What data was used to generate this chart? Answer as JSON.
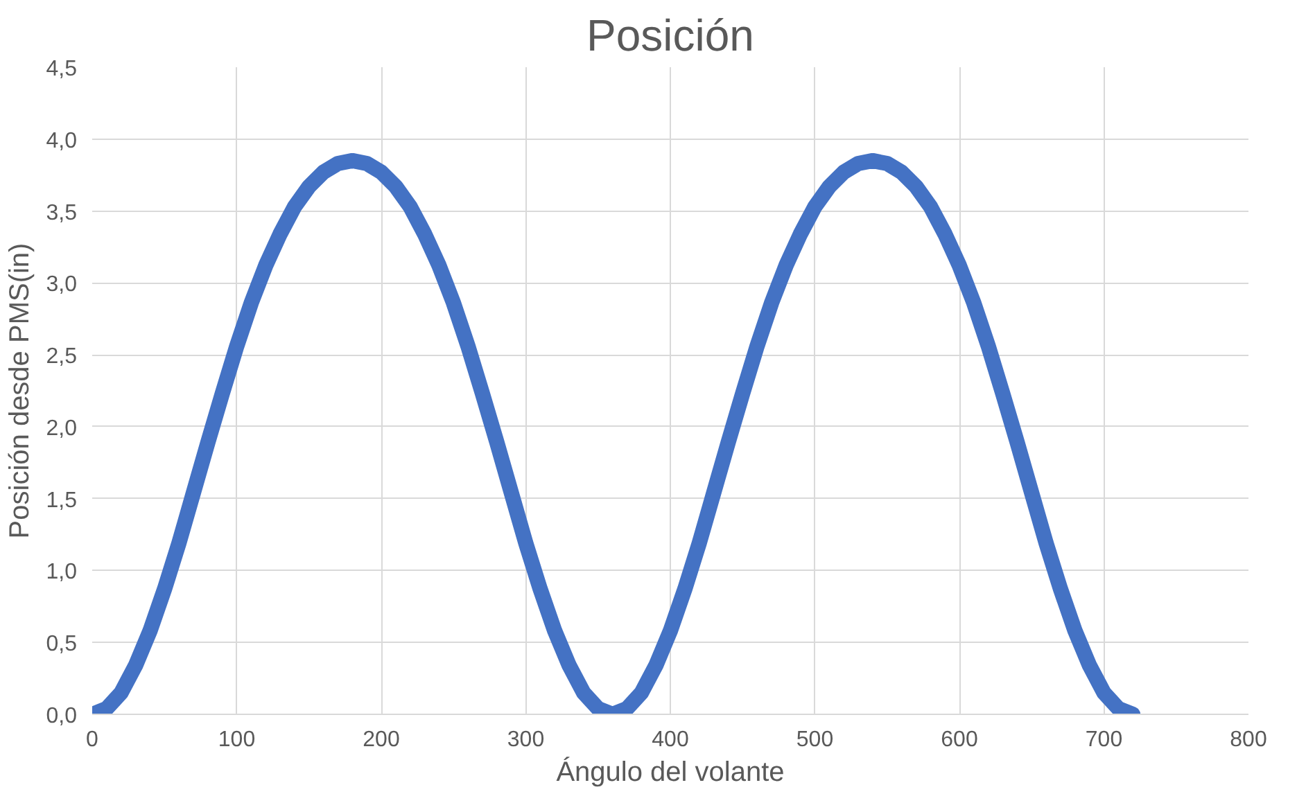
{
  "chart_data": {
    "type": "line",
    "title": "Posición",
    "xlabel": "Ángulo del volante",
    "ylabel": "Posición desde PMS(in)",
    "x": [
      0,
      10,
      20,
      30,
      40,
      50,
      60,
      70,
      80,
      90,
      100,
      110,
      120,
      130,
      140,
      150,
      160,
      170,
      180,
      190,
      200,
      210,
      220,
      230,
      240,
      250,
      260,
      270,
      280,
      290,
      300,
      310,
      320,
      330,
      340,
      350,
      360,
      370,
      380,
      390,
      400,
      410,
      420,
      430,
      440,
      450,
      460,
      470,
      480,
      490,
      500,
      510,
      520,
      530,
      540,
      550,
      560,
      570,
      580,
      590,
      600,
      610,
      620,
      630,
      640,
      650,
      660,
      670,
      680,
      690,
      700,
      710,
      720
    ],
    "series": [
      {
        "color": "#4472c4",
        "values": [
          0,
          0.04,
          0.15,
          0.34,
          0.58,
          0.87,
          1.19,
          1.54,
          1.89,
          2.23,
          2.56,
          2.86,
          3.12,
          3.34,
          3.53,
          3.67,
          3.77,
          3.83,
          3.85,
          3.83,
          3.77,
          3.67,
          3.53,
          3.34,
          3.12,
          2.86,
          2.56,
          2.23,
          1.89,
          1.54,
          1.19,
          0.87,
          0.58,
          0.34,
          0.15,
          0.04,
          0,
          0.04,
          0.15,
          0.34,
          0.58,
          0.87,
          1.19,
          1.54,
          1.89,
          2.23,
          2.56,
          2.86,
          3.12,
          3.34,
          3.53,
          3.67,
          3.77,
          3.83,
          3.85,
          3.83,
          3.77,
          3.67,
          3.53,
          3.34,
          3.12,
          2.86,
          2.56,
          2.23,
          1.89,
          1.54,
          1.19,
          0.87,
          0.58,
          0.34,
          0.15,
          0.04,
          0
        ]
      }
    ],
    "xlim": [
      0,
      800
    ],
    "xticks": [
      0,
      100,
      200,
      300,
      400,
      500,
      600,
      700,
      800
    ],
    "ylim": [
      0,
      4.5
    ],
    "yticks": [
      {
        "value": 0,
        "label": "0,0"
      },
      {
        "value": 0.5,
        "label": "0,5"
      },
      {
        "value": 1,
        "label": "1,0"
      },
      {
        "value": 1.5,
        "label": "1,5"
      },
      {
        "value": 2,
        "label": "2,0"
      },
      {
        "value": 2.5,
        "label": "2,5"
      },
      {
        "value": 3,
        "label": "3,0"
      },
      {
        "value": 3.5,
        "label": "3,5"
      },
      {
        "value": 4,
        "label": "4,0"
      },
      {
        "value": 4.5,
        "label": "4,5"
      }
    ],
    "grid": true,
    "line_style": "solid"
  }
}
